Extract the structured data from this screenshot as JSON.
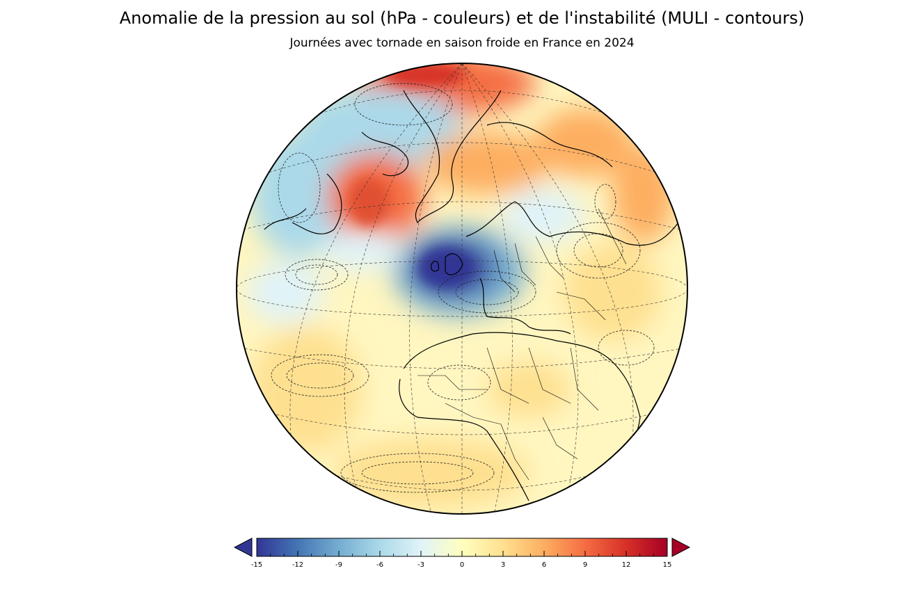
{
  "title": "Anomalie de la pression au sol (hPa - couleurs) et de l'instabilité (MULI - contours)",
  "subtitle": "Journées avec tornade en saison froide en France en 2024",
  "map": {
    "projection": "orthographic",
    "fields": [
      "pression au sol",
      "MULI"
    ],
    "colormap": "RdYlBu_r",
    "contours": "dashed"
  },
  "colorbar": {
    "min": -15,
    "max": 15,
    "extend": "both",
    "ticks": [
      -15,
      -12,
      -9,
      -6,
      -3,
      0,
      3,
      6,
      9,
      12,
      15
    ],
    "tick_labels": [
      "-15",
      "-12",
      "-9",
      "-6",
      "-3",
      "0",
      "3",
      "6",
      "9",
      "12",
      "15"
    ],
    "colors": [
      "#313695",
      "#4575b4",
      "#74add1",
      "#abd9e9",
      "#e0f3f8",
      "#ffffbf",
      "#fee090",
      "#fdae61",
      "#f46d43",
      "#d73027",
      "#a50026"
    ]
  }
}
